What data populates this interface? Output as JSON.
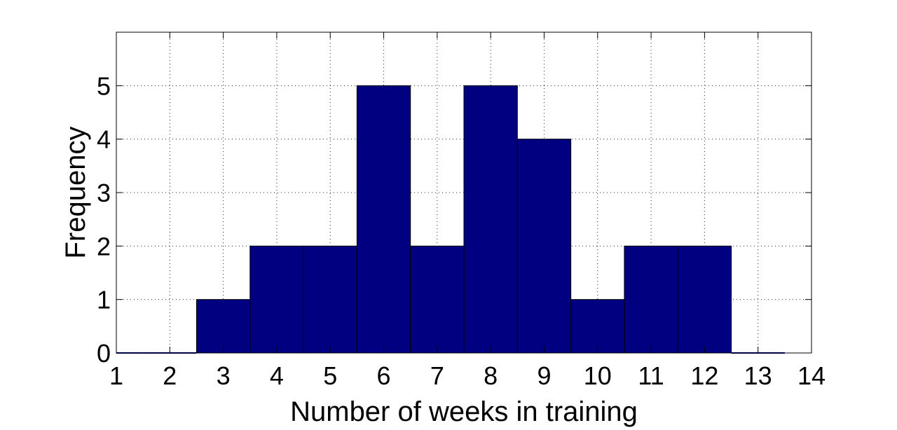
{
  "chart_data": {
    "type": "bar",
    "xlabel": "Number of weeks in training",
    "ylabel": "Frequency",
    "xlim": [
      1,
      14
    ],
    "ylim": [
      0,
      6
    ],
    "xticks": [
      1,
      2,
      3,
      4,
      5,
      6,
      7,
      8,
      9,
      10,
      11,
      12,
      13,
      14
    ],
    "yticks": [
      0,
      1,
      2,
      3,
      4,
      5
    ],
    "bin_width": 1,
    "x": [
      1,
      2,
      3,
      4,
      5,
      6,
      7,
      8,
      9,
      10,
      11,
      12,
      13
    ],
    "values": [
      0,
      0,
      1,
      2,
      2,
      5,
      2,
      5,
      4,
      1,
      2,
      2,
      0
    ],
    "bar_color": "#000080",
    "grid": true
  }
}
